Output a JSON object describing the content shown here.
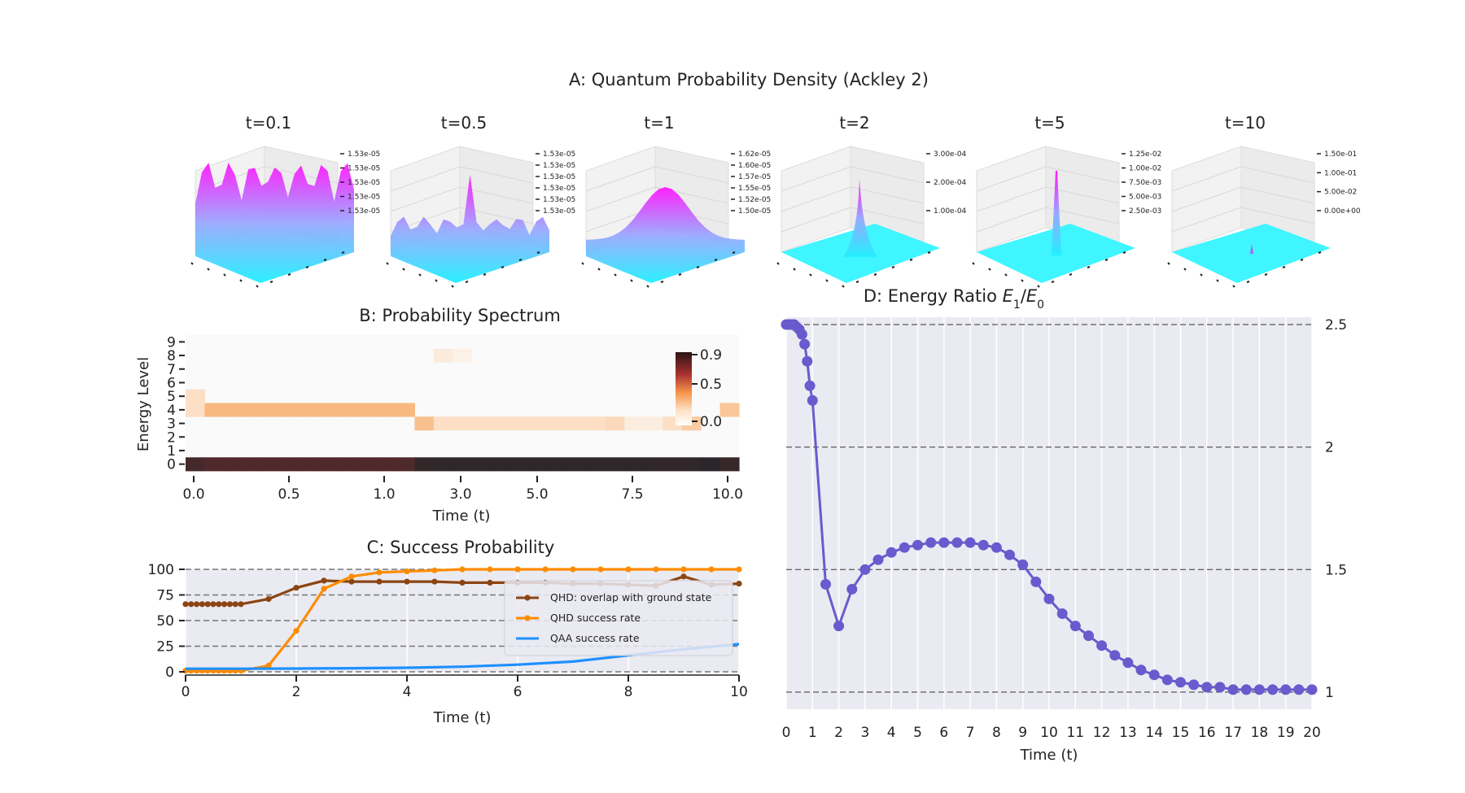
{
  "figure_title": "A: Quantum Probability Density (Ackley 2)",
  "chart_data": [
    {
      "panel": "A",
      "type": "surface3d",
      "title": "A: Quantum Probability Density (Ackley 2)",
      "subplots": [
        {
          "title": "t=0.1",
          "zticks": [
            "1.53e-05",
            "1.53e-05",
            "1.53e-05",
            "1.53e-05",
            "1.53e-05"
          ],
          "shape": "ackley-rough"
        },
        {
          "title": "t=0.5",
          "zticks": [
            "1.53e-05",
            "1.53e-05",
            "1.53e-05",
            "1.53e-05",
            "1.53e-05",
            "1.53e-05"
          ],
          "shape": "ackley-mixed"
        },
        {
          "title": "t=1",
          "zticks": [
            "1.62e-05",
            "1.60e-05",
            "1.57e-05",
            "1.55e-05",
            "1.52e-05",
            "1.50e-05"
          ],
          "shape": "broad-peak"
        },
        {
          "title": "t=2",
          "zticks": [
            "3.00e-04",
            "2.00e-04",
            "1.00e-04"
          ],
          "shape": "narrow-peak"
        },
        {
          "title": "t=5",
          "zticks": [
            "1.25e-02",
            "1.00e-02",
            "7.50e-03",
            "5.00e-03",
            "2.50e-03"
          ],
          "shape": "spike"
        },
        {
          "title": "t=10",
          "zticks": [
            "1.50e-01",
            "1.00e-01",
            "5.00e-02",
            "0.00e+00"
          ],
          "shape": "tiny-spike"
        }
      ]
    },
    {
      "panel": "B",
      "type": "heatmap",
      "title": "B: Probability Spectrum",
      "xlabel": "Time (t)",
      "ylabel": "Energy Level",
      "x_ticks": [
        "0.0",
        "0.5",
        "1.0",
        "3.0",
        "5.0",
        "7.5",
        "10.0"
      ],
      "y_levels": [
        0,
        1,
        2,
        3,
        4,
        5,
        6,
        7,
        8,
        9
      ],
      "colorbar_ticks": [
        "0.9",
        "0.5",
        "0.0"
      ],
      "columns": 29,
      "level0": [
        0.88,
        0.85,
        0.85,
        0.85,
        0.85,
        0.85,
        0.85,
        0.85,
        0.85,
        0.85,
        0.85,
        0.85,
        0.95,
        0.97,
        0.97,
        0.97,
        0.97,
        0.97,
        0.97,
        0.97,
        0.97,
        0.97,
        0.97,
        0.97,
        0.97,
        0.95,
        0.97,
        1.0,
        0.93
      ],
      "level3": [
        0,
        0,
        0,
        0,
        0,
        0,
        0,
        0,
        0,
        0,
        0,
        0,
        0.25,
        0.12,
        0.12,
        0.12,
        0.12,
        0.12,
        0.12,
        0.12,
        0.12,
        0.12,
        0.14,
        0.06,
        0.06,
        0.12,
        0.2,
        0,
        0
      ],
      "level4": [
        0.12,
        0.28,
        0.28,
        0.28,
        0.28,
        0.28,
        0.28,
        0.28,
        0.28,
        0.28,
        0.28,
        0.28,
        0,
        0,
        0,
        0,
        0,
        0,
        0,
        0,
        0,
        0,
        0,
        0,
        0,
        0,
        0,
        0,
        0.22
      ],
      "level5": [
        0.12,
        0,
        0,
        0,
        0,
        0,
        0,
        0,
        0,
        0,
        0,
        0,
        0,
        0,
        0,
        0,
        0,
        0,
        0,
        0,
        0,
        0,
        0,
        0,
        0,
        0,
        0,
        0,
        0
      ],
      "level8": [
        0,
        0,
        0,
        0,
        0,
        0,
        0,
        0,
        0,
        0,
        0,
        0,
        0,
        0.07,
        0.04,
        0,
        0,
        0,
        0,
        0,
        0,
        0,
        0,
        0,
        0,
        0,
        0,
        0,
        0
      ]
    },
    {
      "panel": "C",
      "type": "line",
      "title": "C: Success Probability",
      "xlabel": "Time (t)",
      "xlim": [
        0,
        10
      ],
      "ylim": [
        0,
        100
      ],
      "x_ticks": [
        "0",
        "2",
        "4",
        "6",
        "8",
        "10"
      ],
      "y_ticks": [
        "0",
        "25",
        "50",
        "75",
        "100"
      ],
      "legend_position": "right",
      "series": [
        {
          "name": "QHD: overlap with ground state",
          "color": "#8b4513",
          "x": [
            0,
            0.1,
            0.2,
            0.3,
            0.4,
            0.5,
            0.6,
            0.7,
            0.8,
            0.9,
            1,
            1.5,
            2,
            2.5,
            3,
            3.5,
            4,
            4.5,
            5,
            5.5,
            6,
            6.5,
            7,
            7.5,
            8,
            8.5,
            9,
            9.5,
            10
          ],
          "y": [
            66,
            66,
            66,
            66,
            66,
            66,
            66,
            66,
            66,
            66,
            66,
            71,
            82,
            89,
            88,
            88,
            88,
            88,
            87,
            87,
            87,
            87,
            86,
            86,
            85,
            84,
            93,
            85,
            86
          ]
        },
        {
          "name": "QHD success rate",
          "color": "#ff8c00",
          "x": [
            0,
            0.1,
            0.2,
            0.3,
            0.4,
            0.5,
            0.6,
            0.7,
            0.8,
            0.9,
            1,
            1.5,
            2,
            2.5,
            3,
            3.5,
            4,
            4.5,
            5,
            5.5,
            6,
            6.5,
            7,
            7.5,
            8,
            8.5,
            9,
            9.5,
            10
          ],
          "y": [
            1,
            1,
            1,
            1,
            1,
            1,
            1,
            1,
            1,
            1,
            1,
            6,
            40,
            81,
            93,
            97,
            98,
            99,
            100,
            100,
            100,
            100,
            100,
            100,
            100,
            100,
            100,
            100,
            100
          ]
        },
        {
          "name": "QAA success rate",
          "color": "#1e90ff",
          "x": [
            0,
            1,
            2,
            3,
            4,
            5,
            6,
            7,
            8,
            9,
            10
          ],
          "y": [
            3,
            3,
            3.2,
            3.5,
            4,
            5,
            7,
            10,
            16,
            22,
            27
          ]
        }
      ]
    },
    {
      "panel": "D",
      "type": "line",
      "title": "D: Energy Ratio E1/E0",
      "title_plain": "D: Energy Ratio ",
      "title_math": "E",
      "title_math_sub1": "1",
      "title_math_sub0": "0",
      "xlabel": "Time (t)",
      "xlim": [
        0,
        20
      ],
      "ylim": [
        0.93,
        2.53
      ],
      "x_ticks": [
        "0",
        "1",
        "2",
        "3",
        "4",
        "5",
        "6",
        "7",
        "8",
        "9",
        "10",
        "11",
        "12",
        "13",
        "14",
        "15",
        "16",
        "17",
        "18",
        "19",
        "20"
      ],
      "y_ticks": [
        "1",
        "1.5",
        "2",
        "2.5"
      ],
      "series": [
        {
          "name": "",
          "color": "#6a5acd",
          "x": [
            0,
            0.1,
            0.2,
            0.3,
            0.4,
            0.5,
            0.6,
            0.7,
            0.8,
            0.9,
            1,
            1.5,
            2,
            2.5,
            3,
            3.5,
            4,
            4.5,
            5,
            5.5,
            6,
            6.5,
            7,
            7.5,
            8,
            8.5,
            9,
            9.5,
            10,
            10.5,
            11,
            11.5,
            12,
            12.5,
            13,
            13.5,
            14,
            14.5,
            15,
            15.5,
            16,
            16.5,
            17,
            17.5,
            18,
            18.5,
            19,
            19.5,
            20
          ],
          "y": [
            2.5,
            2.5,
            2.5,
            2.5,
            2.49,
            2.48,
            2.46,
            2.42,
            2.35,
            2.25,
            2.19,
            1.44,
            1.27,
            1.42,
            1.5,
            1.54,
            1.57,
            1.59,
            1.6,
            1.61,
            1.61,
            1.61,
            1.61,
            1.6,
            1.59,
            1.56,
            1.52,
            1.45,
            1.38,
            1.32,
            1.27,
            1.23,
            1.19,
            1.15,
            1.12,
            1.09,
            1.07,
            1.05,
            1.04,
            1.03,
            1.02,
            1.02,
            1.01,
            1.01,
            1.01,
            1.01,
            1.01,
            1.01,
            1.01
          ]
        }
      ]
    }
  ]
}
